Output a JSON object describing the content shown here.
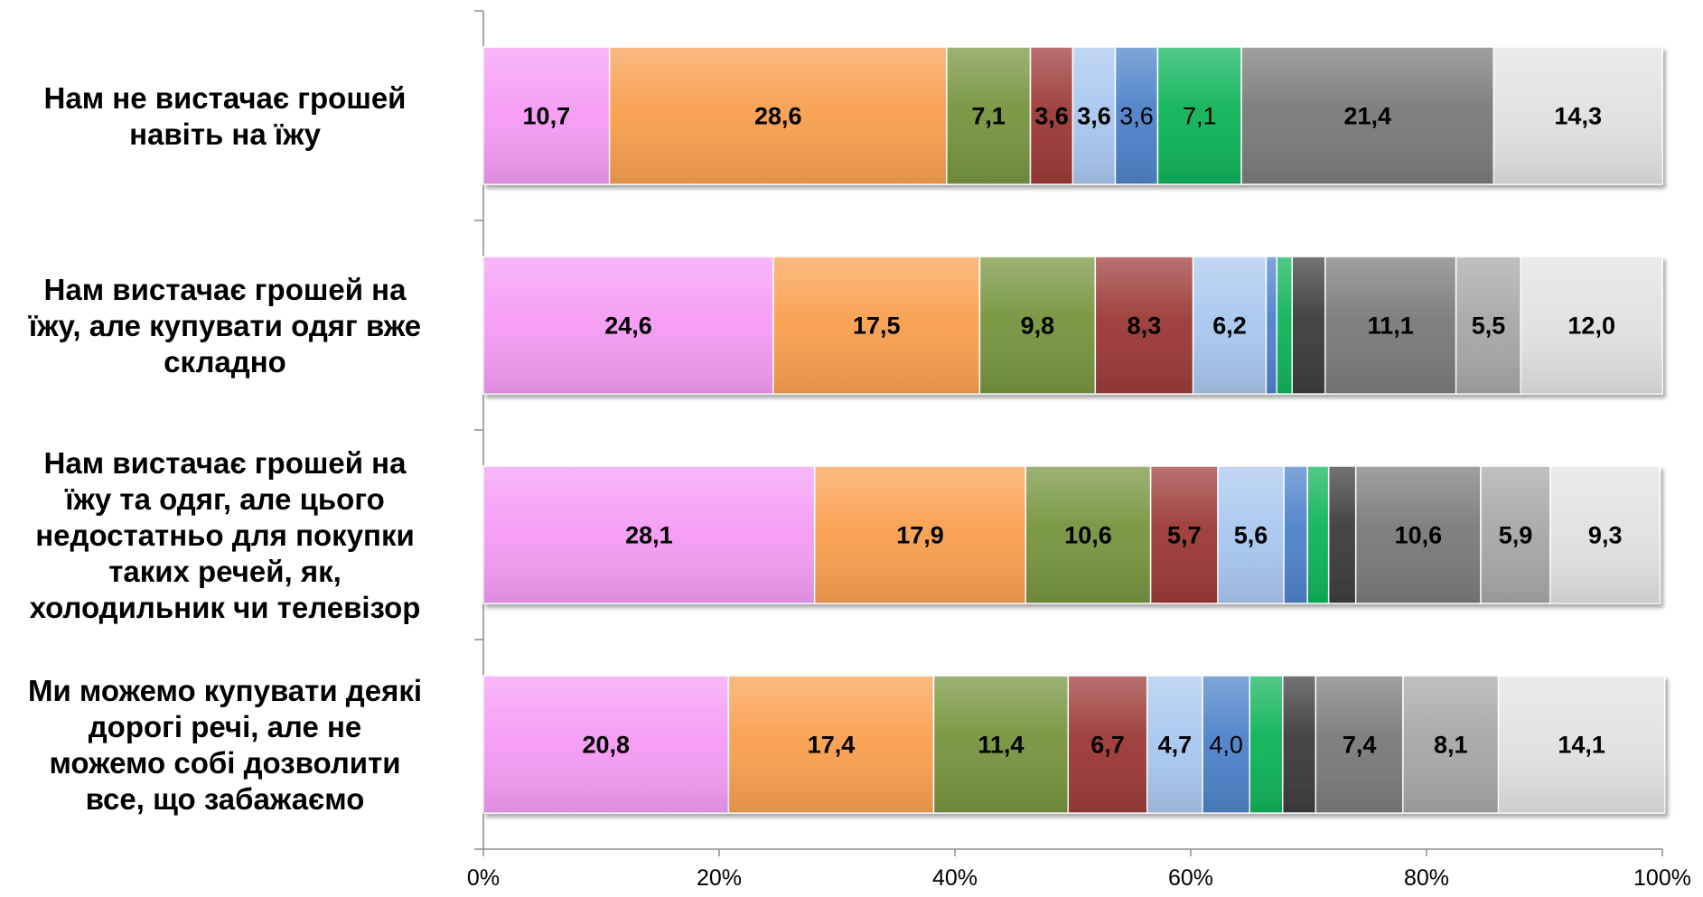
{
  "chart_data": {
    "type": "bar",
    "orientation": "horizontal",
    "stacked": "percent",
    "title": "",
    "xlabel": "",
    "ylabel": "",
    "xlim": [
      0,
      100
    ],
    "x_ticks": [
      "0%",
      "20%",
      "40%",
      "60%",
      "80%",
      "100%"
    ],
    "grid": false,
    "legend": "none",
    "categories": [
      [
        "Нам не вистачає грошей",
        "навіть на їжу"
      ],
      [
        "Нам вистачає грошей на",
        "їжу, але купувати одяг вже",
        "складно"
      ],
      [
        "Нам вистачає грошей на",
        "їжу та одяг, але цього",
        "недостатньо для покупки",
        "таких речей, як,",
        "холодильник чи телевізор"
      ],
      [
        "Ми можемо купувати деякі",
        "дорогі речі, але  не",
        "можемо собі дозволити",
        "все, що забажаємо"
      ]
    ],
    "series": [
      {
        "color": "#f59cf5",
        "values": [
          10.7,
          24.6,
          28.1,
          20.8
        ],
        "labels": [
          "10,7",
          "24,6",
          "28,1",
          "20,8"
        ],
        "bold": [
          true,
          true,
          true,
          true
        ]
      },
      {
        "color": "#f9a050",
        "values": [
          28.6,
          17.5,
          17.9,
          17.4
        ],
        "labels": [
          "28,6",
          "17,5",
          "17,9",
          "17,4"
        ],
        "bold": [
          true,
          true,
          true,
          true
        ]
      },
      {
        "color": "#779540",
        "values": [
          7.1,
          9.8,
          10.6,
          11.4
        ],
        "labels": [
          "7,1",
          "9,8",
          "10,6",
          "11,4"
        ],
        "bold": [
          true,
          true,
          true,
          true
        ]
      },
      {
        "color": "#9c3b38",
        "values": [
          3.6,
          8.3,
          5.7,
          6.7
        ],
        "labels": [
          "3,6",
          "8,3",
          "5,7",
          "6,7"
        ],
        "bold": [
          true,
          true,
          true,
          true
        ]
      },
      {
        "color": "#a9c8ef",
        "values": [
          3.6,
          6.2,
          5.6,
          4.7
        ],
        "labels": [
          "3,6",
          "6,2",
          "5,6",
          "4,7"
        ],
        "bold": [
          true,
          true,
          true,
          true
        ]
      },
      {
        "color": "#4e83c9",
        "values": [
          3.6,
          0.9,
          2.0,
          4.0
        ],
        "labels": [
          "3,6",
          "",
          "",
          "4,0"
        ],
        "bold": [
          false,
          false,
          false,
          false
        ]
      },
      {
        "color": "#10b45a",
        "values": [
          7.1,
          1.3,
          1.8,
          2.8
        ],
        "labels": [
          "7,1",
          "",
          "",
          ""
        ],
        "bold": [
          false,
          false,
          false,
          false
        ]
      },
      {
        "color": "#3d3d3d",
        "values": [
          0,
          2.8,
          2.3,
          2.8
        ],
        "labels": [
          "",
          "",
          "",
          ""
        ],
        "bold": [
          false,
          false,
          false,
          false
        ]
      },
      {
        "color": "#7b7b7b",
        "values": [
          21.4,
          11.1,
          10.6,
          7.4
        ],
        "labels": [
          "21,4",
          "11,1",
          "10,6",
          "7,4"
        ],
        "bold": [
          true,
          true,
          true,
          true
        ]
      },
      {
        "color": "#a8a8a8",
        "values": [
          0,
          5.5,
          5.9,
          8.1
        ],
        "labels": [
          "",
          "5,5",
          "5,9",
          "8,1"
        ],
        "bold": [
          true,
          true,
          true,
          true
        ]
      },
      {
        "color": "#e2e2e2",
        "values": [
          14.3,
          12.0,
          9.3,
          14.1
        ],
        "labels": [
          "14,3",
          "12,0",
          "9,3",
          "14,1"
        ],
        "bold": [
          true,
          true,
          true,
          true
        ]
      }
    ]
  }
}
